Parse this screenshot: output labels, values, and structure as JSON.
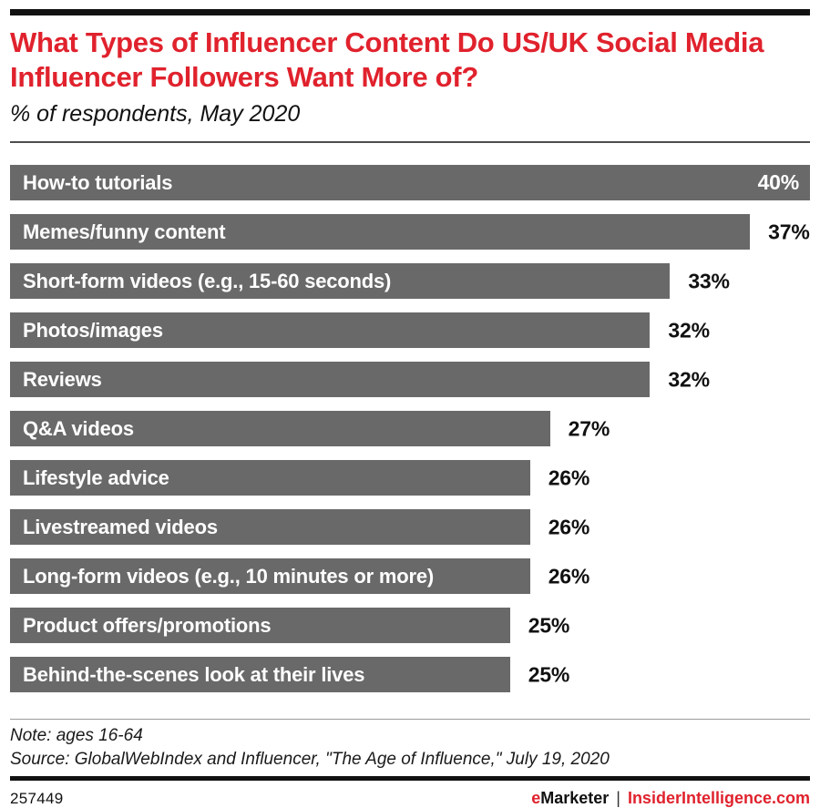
{
  "colors": {
    "accent_red": "#e0222d",
    "bar_gray": "#696969",
    "rule_black": "#111111",
    "divider_dark": "#4d4d4d",
    "divider_light": "#9b9b9b"
  },
  "chart_data": {
    "type": "bar",
    "orientation": "horizontal",
    "title": "What Types of Influencer Content Do US/UK Social Media Influencer Followers Want More of?",
    "subtitle": "% of respondents, May 2020",
    "categories": [
      "How-to tutorials",
      "Memes/funny content",
      "Short-form videos (e.g., 15-60 seconds)",
      "Photos/images",
      "Reviews",
      "Q&A videos",
      "Lifestyle advice",
      "Livestreamed videos",
      "Long-form videos (e.g., 10 minutes or more)",
      "Product offers/promotions",
      "Behind-the-scenes look at their lives"
    ],
    "values": [
      40,
      37,
      33,
      32,
      32,
      27,
      26,
      26,
      26,
      25,
      25
    ],
    "value_suffix": "%",
    "xlim": [
      0,
      40
    ],
    "grid": false,
    "legend": false,
    "value_label_position": "end-of-bar",
    "bar_color": "#696969",
    "bar_label_color": "#ffffff",
    "value_label_color": "#111111"
  },
  "footer": {
    "note": "Note: ages 16-64",
    "source": "Source: GlobalWebIndex and Influencer, \"The Age of Influence,\" July 19, 2020",
    "chart_id": "257449",
    "brand": {
      "prefix": "e",
      "name": "Marketer",
      "separator": "|",
      "site": "InsiderIntelligence.com"
    }
  }
}
